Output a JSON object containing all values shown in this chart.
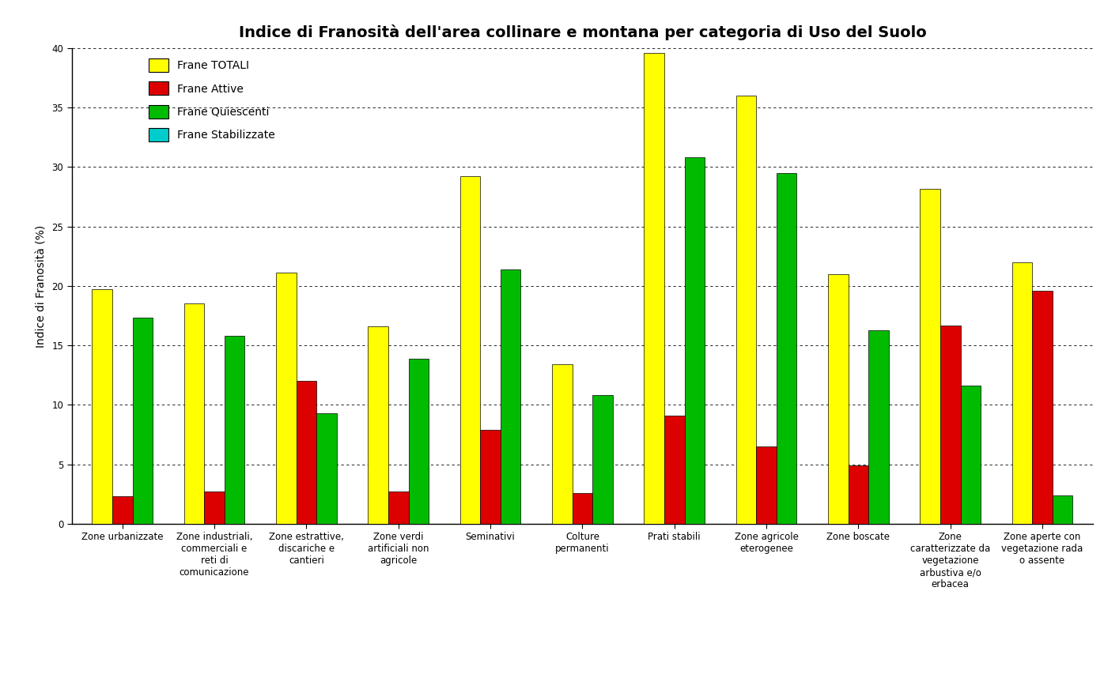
{
  "title": "Indice di Franosità dell'area collinare e montana per categoria di Uso del Suolo",
  "ylabel": "Indice di Franosità (%)",
  "ylim": [
    0,
    40
  ],
  "yticks": [
    0,
    5,
    10,
    15,
    20,
    25,
    30,
    35,
    40
  ],
  "categories": [
    "Zone urbanizzate",
    "Zone industriali,\ncommerciali e\nreti di\ncomunicazione",
    "Zone estrattive,\ndiscariche e\ncantieri",
    "Zone verdi\nartificiali non\nagricole",
    "Seminativi",
    "Colture\npermanenti",
    "Prati stabili",
    "Zone agricole\neterogenee",
    "Zone boscate",
    "Zone\ncaratterizzate da\nvegetazione\narbustiva e/o\nerbacea",
    "Zone aperte con\nvegetazione rada\no assente"
  ],
  "series": {
    "Frane TOTALI": {
      "color": "#FFFF00",
      "values": [
        19.7,
        18.5,
        21.1,
        16.6,
        29.2,
        13.4,
        39.6,
        36.0,
        21.0,
        28.2,
        22.0
      ]
    },
    "Frane Attive": {
      "color": "#DD0000",
      "values": [
        2.3,
        2.7,
        12.0,
        2.7,
        7.9,
        2.6,
        9.1,
        6.5,
        4.9,
        16.7,
        19.6
      ]
    },
    "Frane Quiescenti": {
      "color": "#00BB00",
      "values": [
        17.3,
        15.8,
        9.3,
        13.9,
        21.4,
        10.8,
        30.8,
        29.5,
        16.3,
        11.6,
        2.4
      ]
    },
    "Frane Stabilizzate": {
      "color": "#00CCCC",
      "values": [
        0,
        0,
        0,
        0,
        0,
        0,
        0,
        0,
        0,
        0,
        0
      ]
    }
  },
  "legend_order": [
    "Frane TOTALI",
    "Frane Attive",
    "Frane Quiescenti",
    "Frane Stabilizzate"
  ],
  "background_color": "#FFFFFF",
  "plot_bg_color": "#FFFFFF",
  "title_fontsize": 14,
  "axis_fontsize": 10,
  "tick_fontsize": 8.5,
  "legend_fontsize": 10,
  "bar_width": 0.22,
  "bar_edge_color": "#000000",
  "bar_edge_width": 0.5
}
